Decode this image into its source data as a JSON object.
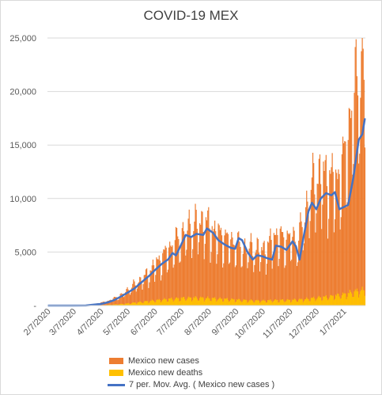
{
  "chart_data": {
    "type": "bar",
    "title": "COVID-19 MEX",
    "xlabel": "",
    "ylabel": "",
    "ylim": [
      0,
      25000
    ],
    "y_ticks": [
      "-",
      "5,000",
      "10,000",
      "15,000",
      "20,000",
      "25,000"
    ],
    "x_tick_labels": [
      "2/7/2020",
      "3/7/2020",
      "4/7/2020",
      "5/7/2020",
      "6/7/2020",
      "7/7/2020",
      "8/7/2020",
      "9/7/2020",
      "10/7/2020",
      "11/7/2020",
      "12/7/2020",
      "1/7/2021"
    ],
    "x_start": "2020-02-07",
    "x_end": "2021-01-31",
    "grid": true,
    "legend_position": "bottom",
    "series": [
      {
        "name": "Mexico new cases",
        "kind": "bar",
        "color": "#ED7D31",
        "points": [
          [
            "2020-02-07",
            0
          ],
          [
            "2020-03-07",
            5
          ],
          [
            "2020-03-21",
            40
          ],
          [
            "2020-04-01",
            150
          ],
          [
            "2020-04-07",
            250
          ],
          [
            "2020-04-15",
            400
          ],
          [
            "2020-04-22",
            650
          ],
          [
            "2020-05-01",
            1000
          ],
          [
            "2020-05-07",
            1400
          ],
          [
            "2020-05-15",
            1900
          ],
          [
            "2020-05-22",
            2300
          ],
          [
            "2020-06-01",
            3000
          ],
          [
            "2020-06-07",
            3700
          ],
          [
            "2020-06-15",
            4300
          ],
          [
            "2020-06-22",
            5000
          ],
          [
            "2020-07-01",
            5800
          ],
          [
            "2020-07-07",
            6300
          ],
          [
            "2020-07-15",
            7000
          ],
          [
            "2020-07-22",
            7300
          ],
          [
            "2020-08-01",
            7600
          ],
          [
            "2020-08-07",
            7200
          ],
          [
            "2020-08-15",
            6600
          ],
          [
            "2020-08-22",
            6300
          ],
          [
            "2020-09-01",
            5800
          ],
          [
            "2020-09-07",
            5600
          ],
          [
            "2020-09-15",
            5200
          ],
          [
            "2020-09-22",
            5200
          ],
          [
            "2020-10-01",
            5100
          ],
          [
            "2020-10-07",
            5000
          ],
          [
            "2020-10-15",
            5500
          ],
          [
            "2020-10-22",
            6400
          ],
          [
            "2020-11-01",
            5900
          ],
          [
            "2020-11-07",
            6200
          ],
          [
            "2020-11-15",
            5800
          ],
          [
            "2020-11-22",
            7500
          ],
          [
            "2020-12-01",
            10500
          ],
          [
            "2020-12-07",
            11500
          ],
          [
            "2020-12-15",
            11800
          ],
          [
            "2020-12-22",
            11500
          ],
          [
            "2020-12-30",
            11200
          ],
          [
            "2021-01-07",
            13000
          ],
          [
            "2021-01-15",
            17000
          ],
          [
            "2021-01-22",
            20500
          ],
          [
            "2021-01-31",
            21500
          ]
        ]
      },
      {
        "name": "Mexico new deaths",
        "kind": "bar",
        "color": "#FFC000",
        "points": [
          [
            "2020-02-07",
            0
          ],
          [
            "2020-03-21",
            2
          ],
          [
            "2020-04-07",
            30
          ],
          [
            "2020-04-22",
            90
          ],
          [
            "2020-05-07",
            180
          ],
          [
            "2020-05-22",
            320
          ],
          [
            "2020-06-07",
            460
          ],
          [
            "2020-06-22",
            580
          ],
          [
            "2020-07-07",
            660
          ],
          [
            "2020-07-22",
            700
          ],
          [
            "2020-08-07",
            660
          ],
          [
            "2020-08-22",
            600
          ],
          [
            "2020-09-07",
            520
          ],
          [
            "2020-09-22",
            460
          ],
          [
            "2020-10-07",
            430
          ],
          [
            "2020-10-22",
            480
          ],
          [
            "2020-11-07",
            490
          ],
          [
            "2020-11-22",
            550
          ],
          [
            "2020-12-07",
            700
          ],
          [
            "2020-12-22",
            800
          ],
          [
            "2021-01-07",
            1000
          ],
          [
            "2021-01-22",
            1300
          ],
          [
            "2021-01-31",
            1400
          ]
        ]
      },
      {
        "name": "7 per. Mov. Avg. ( Mexico new cases )",
        "kind": "line",
        "color": "#4472C4",
        "points": [
          [
            "2020-02-07",
            0
          ],
          [
            "2020-03-07",
            0
          ],
          [
            "2020-03-21",
            10
          ],
          [
            "2020-04-01",
            100
          ],
          [
            "2020-04-07",
            150
          ],
          [
            "2020-04-15",
            300
          ],
          [
            "2020-04-22",
            500
          ],
          [
            "2020-05-01",
            900
          ],
          [
            "2020-05-07",
            1200
          ],
          [
            "2020-05-15",
            1600
          ],
          [
            "2020-05-22",
            2100
          ],
          [
            "2020-06-01",
            2800
          ],
          [
            "2020-06-07",
            3300
          ],
          [
            "2020-06-15",
            3900
          ],
          [
            "2020-06-22",
            4300
          ],
          [
            "2020-06-27",
            4900
          ],
          [
            "2020-07-01",
            4700
          ],
          [
            "2020-07-07",
            5700
          ],
          [
            "2020-07-12",
            6600
          ],
          [
            "2020-07-18",
            6400
          ],
          [
            "2020-07-24",
            6700
          ],
          [
            "2020-08-01",
            6600
          ],
          [
            "2020-08-05",
            7200
          ],
          [
            "2020-08-12",
            6800
          ],
          [
            "2020-08-18",
            6100
          ],
          [
            "2020-08-25",
            5700
          ],
          [
            "2020-09-01",
            5400
          ],
          [
            "2020-09-06",
            5300
          ],
          [
            "2020-09-10",
            6300
          ],
          [
            "2020-09-14",
            6100
          ],
          [
            "2020-09-20",
            5000
          ],
          [
            "2020-09-26",
            4300
          ],
          [
            "2020-10-01",
            4700
          ],
          [
            "2020-10-07",
            4600
          ],
          [
            "2020-10-13",
            4400
          ],
          [
            "2020-10-18",
            4300
          ],
          [
            "2020-10-22",
            5600
          ],
          [
            "2020-10-28",
            5500
          ],
          [
            "2020-11-03",
            5200
          ],
          [
            "2020-11-10",
            6000
          ],
          [
            "2020-11-14",
            5500
          ],
          [
            "2020-11-18",
            4300
          ],
          [
            "2020-11-22",
            6200
          ],
          [
            "2020-11-28",
            8800
          ],
          [
            "2020-12-02",
            9600
          ],
          [
            "2020-12-07",
            9000
          ],
          [
            "2020-12-12",
            10000
          ],
          [
            "2020-12-18",
            10500
          ],
          [
            "2020-12-24",
            10300
          ],
          [
            "2020-12-28",
            10600
          ],
          [
            "2021-01-02",
            9000
          ],
          [
            "2021-01-07",
            9200
          ],
          [
            "2021-01-12",
            9400
          ],
          [
            "2021-01-18",
            12000
          ],
          [
            "2021-01-24",
            15500
          ],
          [
            "2021-01-28",
            16000
          ],
          [
            "2021-01-31",
            17500
          ]
        ]
      }
    ]
  }
}
